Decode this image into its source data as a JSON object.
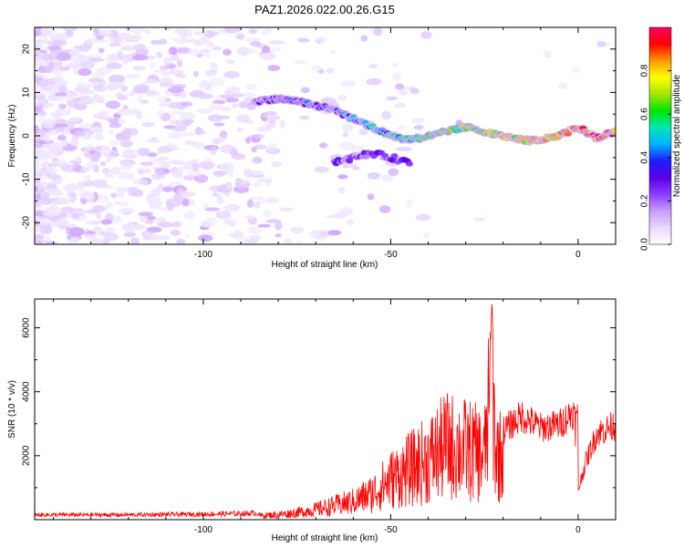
{
  "page_title": "PAZ1.2026.022.00.26.G15",
  "chart_data": [
    {
      "type": "heatmap",
      "title": "PAZ1.2026.022.00.26.G15",
      "xlabel": "Height of straight line (km)",
      "ylabel": "Frequency (Hz)",
      "xlim": [
        -145,
        10
      ],
      "ylim": [
        -25,
        25
      ],
      "x_ticks": [
        -100,
        -50,
        0
      ],
      "y_ticks": [
        -20,
        -10,
        0,
        10,
        20
      ],
      "colorbar": {
        "label": "Normalized spectral amplitude",
        "range": [
          0,
          1
        ],
        "ticks": [
          0.0,
          0.2,
          0.4,
          0.6,
          0.8
        ],
        "colormap": [
          "#ffffff",
          "#e8d8ff",
          "#c99bff",
          "#8a3cff",
          "#5a00e6",
          "#1d1dff",
          "#00b4ff",
          "#00e6b4",
          "#00e600",
          "#a6e600",
          "#ffff00",
          "#ff9900",
          "#ff0000",
          "#ff0060"
        ]
      },
      "ridge_frequency_points": [
        {
          "x": -85,
          "y": 8
        },
        {
          "x": -80,
          "y": 8.5
        },
        {
          "x": -75,
          "y": 8
        },
        {
          "x": -70,
          "y": 7
        },
        {
          "x": -65,
          "y": 6
        },
        {
          "x": -60,
          "y": 4
        },
        {
          "x": -55,
          "y": 2
        },
        {
          "x": -50,
          "y": 0
        },
        {
          "x": -45,
          "y": -1
        },
        {
          "x": -40,
          "y": 0
        },
        {
          "x": -35,
          "y": 1
        },
        {
          "x": -30,
          "y": 2
        },
        {
          "x": -25,
          "y": 1
        },
        {
          "x": -20,
          "y": 0
        },
        {
          "x": -15,
          "y": -1
        },
        {
          "x": -10,
          "y": -1
        },
        {
          "x": -5,
          "y": 0
        },
        {
          "x": 0,
          "y": 2
        },
        {
          "x": 5,
          "y": -0.5
        },
        {
          "x": 10,
          "y": 1
        }
      ],
      "secondary_branch_points": [
        {
          "x": -65,
          "y": -6
        },
        {
          "x": -60,
          "y": -5
        },
        {
          "x": -55,
          "y": -4
        },
        {
          "x": -50,
          "y": -5
        },
        {
          "x": -45,
          "y": -6
        }
      ]
    },
    {
      "type": "line",
      "title": "",
      "xlabel": "Height of straight line (km)",
      "ylabel": "SNR (10 * v/v)",
      "xlim": [
        -145,
        10
      ],
      "ylim": [
        0,
        6900
      ],
      "x_ticks": [
        -100,
        -50,
        0
      ],
      "y_ticks": [
        2000,
        4000,
        6000
      ],
      "color": "#ff0000",
      "envelope": [
        {
          "x": -145,
          "y": 150
        },
        {
          "x": -120,
          "y": 150
        },
        {
          "x": -100,
          "y": 170
        },
        {
          "x": -85,
          "y": 200
        },
        {
          "x": -80,
          "y": 250
        },
        {
          "x": -75,
          "y": 350
        },
        {
          "x": -70,
          "y": 500
        },
        {
          "x": -65,
          "y": 700
        },
        {
          "x": -60,
          "y": 900
        },
        {
          "x": -55,
          "y": 1300
        },
        {
          "x": -50,
          "y": 2000
        },
        {
          "x": -45,
          "y": 2500
        },
        {
          "x": -40,
          "y": 3000
        },
        {
          "x": -35,
          "y": 3700
        },
        {
          "x": -30,
          "y": 3500
        },
        {
          "x": -25,
          "y": 3200
        },
        {
          "x": -23,
          "y": 6900
        },
        {
          "x": -22,
          "y": 3400
        },
        {
          "x": -20,
          "y": 3100
        },
        {
          "x": -15,
          "y": 3600
        },
        {
          "x": -10,
          "y": 3200
        },
        {
          "x": -5,
          "y": 3300
        },
        {
          "x": -1,
          "y": 3800
        },
        {
          "x": 0,
          "y": 1000
        },
        {
          "x": 2,
          "y": 2000
        },
        {
          "x": 5,
          "y": 3000
        },
        {
          "x": 10,
          "y": 3300
        }
      ]
    }
  ]
}
